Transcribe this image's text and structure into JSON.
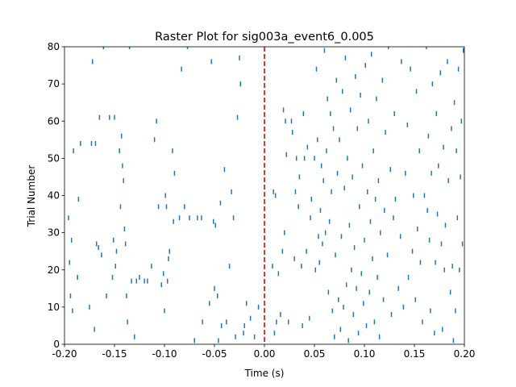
{
  "chart_data": {
    "type": "scatter",
    "title": "Raster Plot for sig003a_event6_0.005",
    "xlabel": "Time (s)",
    "ylabel": "Trial Number",
    "xlim": [
      -0.2,
      0.2
    ],
    "ylim": [
      0,
      80
    ],
    "x_ticks": [
      "-0.20",
      "-0.15",
      "-0.10",
      "-0.05",
      "0.00",
      "0.05",
      "0.10",
      "0.15",
      "0.20"
    ],
    "y_ticks": [
      "0",
      "10",
      "20",
      "30",
      "40",
      "50",
      "60",
      "70",
      "80"
    ],
    "grid": false,
    "marker": "vertical-tick",
    "spike_color": "#1f77b4",
    "event_line": {
      "x": 0.0,
      "color": "#d62728",
      "style": "dashed"
    },
    "spikes": [
      [
        -0.196,
        34
      ],
      [
        -0.195,
        22
      ],
      [
        -0.194,
        13
      ],
      [
        -0.193,
        28
      ],
      [
        -0.192,
        9
      ],
      [
        -0.191,
        52
      ],
      [
        -0.187,
        18
      ],
      [
        -0.186,
        39
      ],
      [
        -0.184,
        54
      ],
      [
        -0.175,
        10
      ],
      [
        -0.173,
        54
      ],
      [
        -0.172,
        76
      ],
      [
        -0.17,
        4
      ],
      [
        -0.169,
        54
      ],
      [
        -0.168,
        27
      ],
      [
        -0.166,
        26
      ],
      [
        -0.165,
        61
      ],
      [
        -0.163,
        24
      ],
      [
        -0.161,
        80
      ],
      [
        -0.158,
        13
      ],
      [
        -0.155,
        61
      ],
      [
        -0.152,
        18
      ],
      [
        -0.151,
        28
      ],
      [
        -0.15,
        61
      ],
      [
        -0.149,
        21
      ],
      [
        -0.148,
        25
      ],
      [
        -0.145,
        52
      ],
      [
        -0.144,
        37
      ],
      [
        -0.143,
        56
      ],
      [
        -0.142,
        48
      ],
      [
        -0.141,
        44
      ],
      [
        -0.14,
        31
      ],
      [
        -0.139,
        27
      ],
      [
        -0.138,
        13
      ],
      [
        -0.137,
        6
      ],
      [
        -0.135,
        80
      ],
      [
        -0.133,
        17
      ],
      [
        -0.13,
        2
      ],
      [
        -0.128,
        17
      ],
      [
        -0.125,
        18
      ],
      [
        -0.12,
        17
      ],
      [
        -0.117,
        17
      ],
      [
        -0.113,
        21
      ],
      [
        -0.11,
        55
      ],
      [
        -0.108,
        60
      ],
      [
        -0.106,
        37
      ],
      [
        -0.103,
        16
      ],
      [
        -0.101,
        19
      ],
      [
        -0.1,
        9
      ],
      [
        -0.099,
        40
      ],
      [
        -0.098,
        37
      ],
      [
        -0.097,
        17
      ],
      [
        -0.096,
        23
      ],
      [
        -0.095,
        25
      ],
      [
        -0.092,
        52
      ],
      [
        -0.091,
        33
      ],
      [
        -0.09,
        46
      ],
      [
        -0.085,
        34
      ],
      [
        -0.083,
        74
      ],
      [
        -0.08,
        37
      ],
      [
        -0.077,
        80
      ],
      [
        -0.075,
        34
      ],
      [
        -0.07,
        1
      ],
      [
        -0.067,
        34
      ],
      [
        -0.063,
        34
      ],
      [
        -0.062,
        6
      ],
      [
        -0.055,
        11
      ],
      [
        -0.053,
        76
      ],
      [
        -0.051,
        33
      ],
      [
        -0.05,
        15
      ],
      [
        -0.049,
        32
      ],
      [
        -0.047,
        13
      ],
      [
        -0.046,
        1
      ],
      [
        -0.044,
        38
      ],
      [
        -0.043,
        5
      ],
      [
        -0.04,
        47
      ],
      [
        -0.038,
        6
      ],
      [
        -0.035,
        21
      ],
      [
        -0.033,
        41
      ],
      [
        -0.031,
        34
      ],
      [
        -0.029,
        2
      ],
      [
        -0.027,
        61
      ],
      [
        -0.025,
        77
      ],
      [
        -0.024,
        70
      ],
      [
        -0.021,
        3
      ],
      [
        -0.02,
        5
      ],
      [
        -0.018,
        11
      ],
      [
        -0.014,
        7
      ],
      [
        -0.01,
        2
      ],
      [
        -0.006,
        10
      ],
      [
        0.008,
        21
      ],
      [
        0.009,
        41
      ],
      [
        0.01,
        3
      ],
      [
        0.011,
        40
      ],
      [
        0.012,
        6
      ],
      [
        0.014,
        19
      ],
      [
        0.016,
        8
      ],
      [
        0.018,
        25
      ],
      [
        0.019,
        63
      ],
      [
        0.02,
        30
      ],
      [
        0.021,
        60
      ],
      [
        0.022,
        51
      ],
      [
        0.024,
        6
      ],
      [
        0.027,
        60
      ],
      [
        0.028,
        57
      ],
      [
        0.03,
        23
      ],
      [
        0.031,
        41
      ],
      [
        0.032,
        50
      ],
      [
        0.034,
        37
      ],
      [
        0.035,
        45
      ],
      [
        0.037,
        21
      ],
      [
        0.038,
        5
      ],
      [
        0.039,
        62
      ],
      [
        0.04,
        50
      ],
      [
        0.042,
        25
      ],
      [
        0.043,
        53
      ],
      [
        0.045,
        7
      ],
      [
        0.046,
        34
      ],
      [
        0.047,
        39
      ],
      [
        0.05,
        50
      ],
      [
        0.051,
        20
      ],
      [
        0.052,
        74
      ],
      [
        0.053,
        55
      ],
      [
        0.054,
        29
      ],
      [
        0.055,
        22
      ],
      [
        0.056,
        36
      ],
      [
        0.057,
        48
      ],
      [
        0.058,
        27
      ],
      [
        0.059,
        44
      ],
      [
        0.06,
        79
      ],
      [
        0.061,
        30
      ],
      [
        0.062,
        52
      ],
      [
        0.063,
        66
      ],
      [
        0.064,
        14
      ],
      [
        0.065,
        33
      ],
      [
        0.066,
        62
      ],
      [
        0.067,
        41
      ],
      [
        0.068,
        9
      ],
      [
        0.069,
        58
      ],
      [
        0.07,
        2
      ],
      [
        0.071,
        24
      ],
      [
        0.072,
        71
      ],
      [
        0.073,
        46
      ],
      [
        0.074,
        12
      ],
      [
        0.075,
        55
      ],
      [
        0.076,
        4
      ],
      [
        0.077,
        29
      ],
      [
        0.078,
        68
      ],
      [
        0.079,
        10
      ],
      [
        0.08,
        42
      ],
      [
        0.081,
        77
      ],
      [
        0.082,
        16
      ],
      [
        0.083,
        50
      ],
      [
        0.084,
        1
      ],
      [
        0.085,
        32
      ],
      [
        0.086,
        63
      ],
      [
        0.087,
        20
      ],
      [
        0.088,
        45
      ],
      [
        0.089,
        8
      ],
      [
        0.09,
        26
      ],
      [
        0.091,
        72
      ],
      [
        0.092,
        15
      ],
      [
        0.093,
        58
      ],
      [
        0.094,
        3
      ],
      [
        0.095,
        37
      ],
      [
        0.096,
        67
      ],
      [
        0.097,
        19
      ],
      [
        0.098,
        48
      ],
      [
        0.099,
        11
      ],
      [
        0.1,
        28
      ],
      [
        0.101,
        75
      ],
      [
        0.102,
        5
      ],
      [
        0.103,
        41
      ],
      [
        0.104,
        60
      ],
      [
        0.105,
        14
      ],
      [
        0.106,
        33
      ],
      [
        0.107,
        78
      ],
      [
        0.108,
        23
      ],
      [
        0.109,
        52
      ],
      [
        0.11,
        6
      ],
      [
        0.111,
        39
      ],
      [
        0.112,
        66
      ],
      [
        0.113,
        18
      ],
      [
        0.114,
        44
      ],
      [
        0.115,
        2
      ],
      [
        0.116,
        30
      ],
      [
        0.118,
        71
      ],
      [
        0.119,
        12
      ],
      [
        0.12,
        36
      ],
      [
        0.121,
        57
      ],
      [
        0.123,
        24
      ],
      [
        0.124,
        80
      ],
      [
        0.126,
        47
      ],
      [
        0.127,
        8
      ],
      [
        0.129,
        34
      ],
      [
        0.13,
        62
      ],
      [
        0.131,
        39
      ],
      [
        0.134,
        15
      ],
      [
        0.136,
        29
      ],
      [
        0.137,
        76
      ],
      [
        0.139,
        10
      ],
      [
        0.141,
        46
      ],
      [
        0.143,
        59
      ],
      [
        0.144,
        18
      ],
      [
        0.146,
        74
      ],
      [
        0.148,
        25
      ],
      [
        0.149,
        40
      ],
      [
        0.151,
        12
      ],
      [
        0.152,
        68
      ],
      [
        0.153,
        31
      ],
      [
        0.155,
        52
      ],
      [
        0.156,
        22
      ],
      [
        0.158,
        6
      ],
      [
        0.16,
        40
      ],
      [
        0.162,
        80
      ],
      [
        0.163,
        36
      ],
      [
        0.164,
        56
      ],
      [
        0.165,
        28
      ],
      [
        0.166,
        9
      ],
      [
        0.167,
        46
      ],
      [
        0.168,
        70
      ],
      [
        0.17,
        3
      ],
      [
        0.171,
        22
      ],
      [
        0.172,
        62
      ],
      [
        0.173,
        35
      ],
      [
        0.174,
        48
      ],
      [
        0.176,
        73
      ],
      [
        0.177,
        27
      ],
      [
        0.178,
        4
      ],
      [
        0.179,
        53
      ],
      [
        0.18,
        20
      ],
      [
        0.181,
        32
      ],
      [
        0.183,
        76
      ],
      [
        0.184,
        44
      ],
      [
        0.186,
        14
      ],
      [
        0.187,
        58
      ],
      [
        0.188,
        21
      ],
      [
        0.189,
        1
      ],
      [
        0.19,
        65
      ],
      [
        0.191,
        9
      ],
      [
        0.192,
        52
      ],
      [
        0.193,
        34
      ],
      [
        0.194,
        74
      ],
      [
        0.195,
        20
      ],
      [
        0.196,
        45
      ],
      [
        0.197,
        60
      ],
      [
        0.198,
        27
      ],
      [
        0.199,
        79
      ]
    ]
  }
}
